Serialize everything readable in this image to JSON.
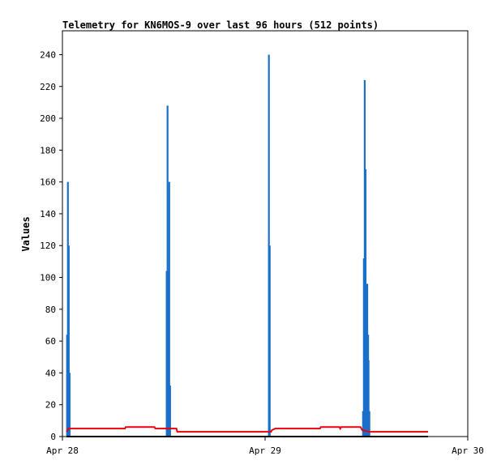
{
  "chart_data": {
    "type": "line",
    "title": "Telemetry for KN6MOS-9 over last 96 hours (512 points)",
    "xlabel": "",
    "ylabel": "Values",
    "x_ticks": [
      "Apr 28",
      "Apr 29",
      "Apr 30"
    ],
    "y_ticks": [
      0,
      20,
      40,
      60,
      80,
      100,
      120,
      140,
      160,
      180,
      200,
      220,
      240
    ],
    "xlim_hours": [
      0,
      48
    ],
    "ylim": [
      0,
      255
    ],
    "grid": false,
    "legend": "none",
    "colors": {
      "spikes": "#1a6fc9",
      "steady": "#e8000b",
      "baseline": "#000000"
    },
    "spike_groups": [
      {
        "hours": [
          0.55,
          0.65,
          0.75,
          0.85,
          0.95
        ],
        "values": [
          64,
          160,
          120,
          40,
          0
        ]
      },
      {
        "hours": [
          12.35,
          12.45,
          12.55,
          12.65,
          12.75
        ],
        "values": [
          104,
          208,
          104,
          160,
          32
        ]
      },
      {
        "hours": [
          24.45,
          24.55
        ],
        "values": [
          240,
          120
        ]
      },
      {
        "hours": [
          35.6,
          35.7,
          35.8,
          35.9,
          36.0,
          36.1,
          36.2
        ],
        "values": [
          16,
          112,
          224,
          168,
          56,
          96,
          64
        ]
      },
      {
        "hours": [
          36.25,
          36.35
        ],
        "values": [
          48,
          16
        ]
      }
    ],
    "steady_series": {
      "hours": [
        0.5,
        0.6,
        0.7,
        7.4,
        7.5,
        10.9,
        11.0,
        13.5,
        13.6,
        24.7,
        24.8,
        25.2,
        25.3,
        30.5,
        30.6,
        32.8,
        32.9,
        33.0,
        35.3,
        35.4,
        35.5,
        36.4,
        36.5,
        43.3
      ],
      "values": [
        3,
        4,
        5,
        5,
        6,
        6,
        5,
        5,
        3,
        3,
        4,
        5,
        5,
        5,
        6,
        6,
        5,
        6,
        6,
        5,
        4,
        3,
        3,
        3
      ]
    },
    "baseline_series": {
      "hours": [
        0.5,
        43.3
      ],
      "values": [
        0,
        0
      ]
    }
  }
}
